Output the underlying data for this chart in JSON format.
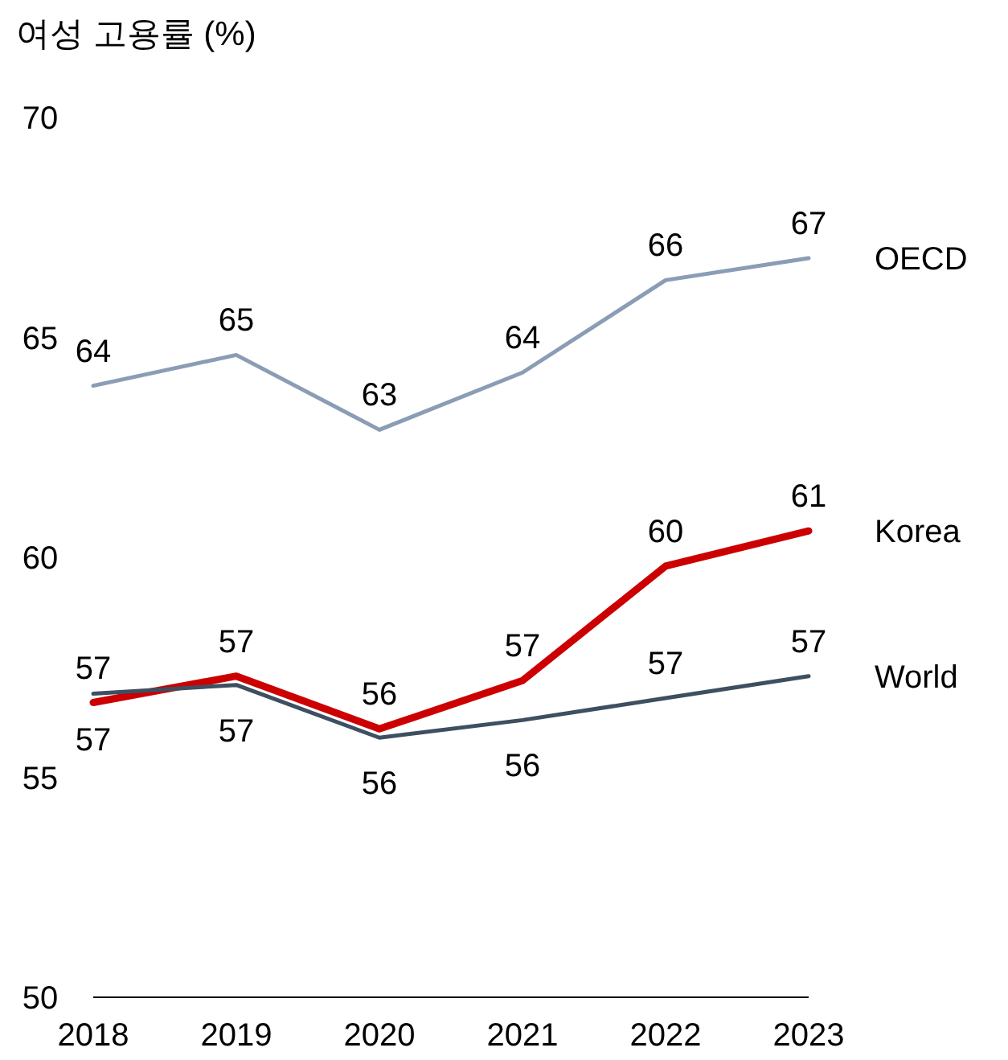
{
  "chart_data": {
    "type": "line",
    "title": "여성 고용률 (%)",
    "categories": [
      "2018",
      "2019",
      "2020",
      "2021",
      "2022",
      "2023"
    ],
    "series": [
      {
        "name": "OECD",
        "color": "#8a9db5",
        "values": [
          63.9,
          64.6,
          62.9,
          64.2,
          66.3,
          66.8
        ],
        "value_labels": [
          "64",
          "65",
          "63",
          "64",
          "66",
          "67"
        ]
      },
      {
        "name": "Korea",
        "color": "#cc0000",
        "values": [
          56.7,
          57.3,
          56.1,
          57.2,
          59.8,
          60.6
        ],
        "value_labels": [
          "57",
          "57",
          "56",
          "57",
          "60",
          "61"
        ]
      },
      {
        "name": "World",
        "color": "#3d4f60",
        "values": [
          56.9,
          57.1,
          55.9,
          56.3,
          56.8,
          57.3
        ],
        "value_labels": [
          "57",
          "57",
          "56",
          "56",
          "57",
          "57"
        ]
      }
    ],
    "ylim": [
      50,
      70
    ],
    "yticks": [
      50,
      55,
      60,
      65,
      70
    ],
    "grid": false,
    "legend": false
  }
}
